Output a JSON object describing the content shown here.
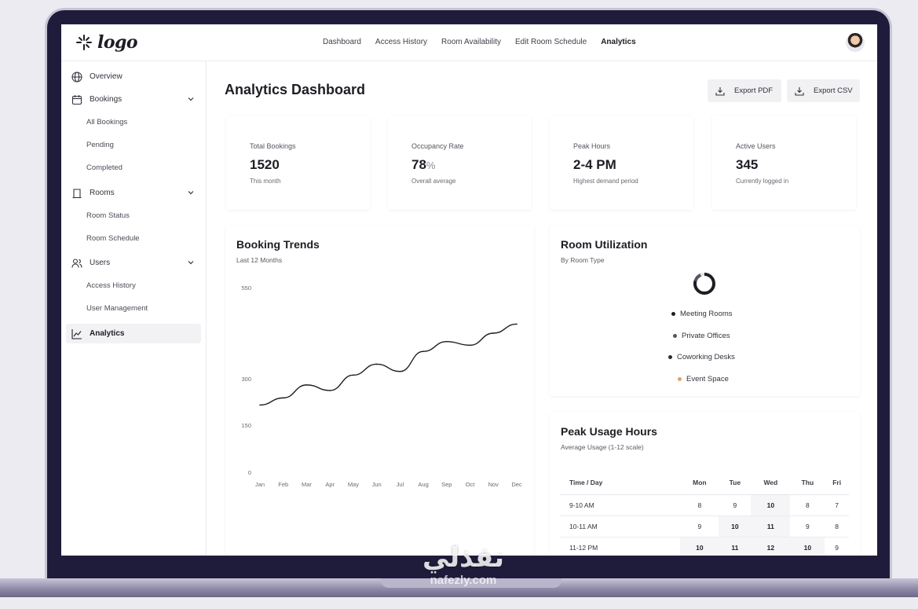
{
  "header": {
    "logo_text": "logo",
    "nav": [
      {
        "label": "Dashboard"
      },
      {
        "label": "Access History"
      },
      {
        "label": "Room Availability"
      },
      {
        "label": "Edit Room Schedule"
      },
      {
        "label": "Analytics",
        "active": true
      }
    ]
  },
  "sidebar": {
    "overview": "Overview",
    "bookings": "Bookings",
    "bookings_sub": [
      "All Bookings",
      "Pending",
      "Completed"
    ],
    "rooms": "Rooms",
    "rooms_sub": [
      "Room Status",
      "Room Schedule"
    ],
    "users": "Users",
    "users_sub": [
      "Access History",
      "User Management"
    ],
    "analytics": "Analytics"
  },
  "main": {
    "title": "Analytics Dashboard",
    "export_pdf": "Export PDF",
    "export_csv": "Export CSV"
  },
  "stats": [
    {
      "label": "Total Bookings",
      "value": "1520",
      "unit": "",
      "sub": "This month"
    },
    {
      "label": "Occupancy Rate",
      "value": "78",
      "unit": "%",
      "sub": "Overall average"
    },
    {
      "label": "Peak Hours",
      "value": "2-4 PM",
      "unit": "",
      "sub": "Highest demand period"
    },
    {
      "label": "Active Users",
      "value": "345",
      "unit": "",
      "sub": "Currently logged in"
    }
  ],
  "booking_trends": {
    "title": "Booking Trends",
    "subtitle": "Last 12 Months"
  },
  "chart_data": {
    "type": "line",
    "categories": [
      "Jan",
      "Feb",
      "Mar",
      "Apr",
      "May",
      "Jun",
      "Jul",
      "Aug",
      "Sep",
      "Oct",
      "Nov",
      "Dec"
    ],
    "series": [
      {
        "values": [
          215,
          238,
          280,
          262,
          310,
          340,
          320,
          375,
          402,
          392,
          425,
          450
        ]
      }
    ],
    "y_ticks": [
      0,
      150,
      300,
      550
    ],
    "title": "Booking Trends",
    "subtitle": "Last 12 Months",
    "color": "#1d1d24"
  },
  "room_utilization": {
    "title": "Room Utilization",
    "subtitle": "By Room Type",
    "legend": [
      {
        "label": "Meeting Rooms",
        "color": "#1d1d24"
      },
      {
        "label": "Private Offices",
        "color": "#55555f"
      },
      {
        "label": "Coworking Desks",
        "color": "#2b2b35"
      },
      {
        "label": "Event Space",
        "color": "#d9a56a"
      }
    ]
  },
  "peak_usage": {
    "title": "Peak Usage Hours",
    "subtitle": "Average Usage (1-12 scale)",
    "columns": [
      "Time / Day",
      "Mon",
      "Tue",
      "Wed",
      "Thu",
      "Fri"
    ],
    "rows": [
      {
        "time": "9-10 AM",
        "values": [
          "8",
          "9",
          "10",
          "8",
          "7"
        ],
        "bold": [
          false,
          false,
          true,
          false,
          false
        ]
      },
      {
        "time": "10-11 AM",
        "values": [
          "9",
          "10",
          "11",
          "9",
          "8"
        ],
        "bold": [
          false,
          true,
          true,
          false,
          false
        ]
      },
      {
        "time": "11-12 PM",
        "values": [
          "10",
          "11",
          "12",
          "10",
          "9"
        ],
        "bold": [
          true,
          true,
          true,
          true,
          false
        ]
      }
    ]
  },
  "watermark": {
    "text_ar": "نفذلي",
    "text_url": "nafezly.com"
  }
}
